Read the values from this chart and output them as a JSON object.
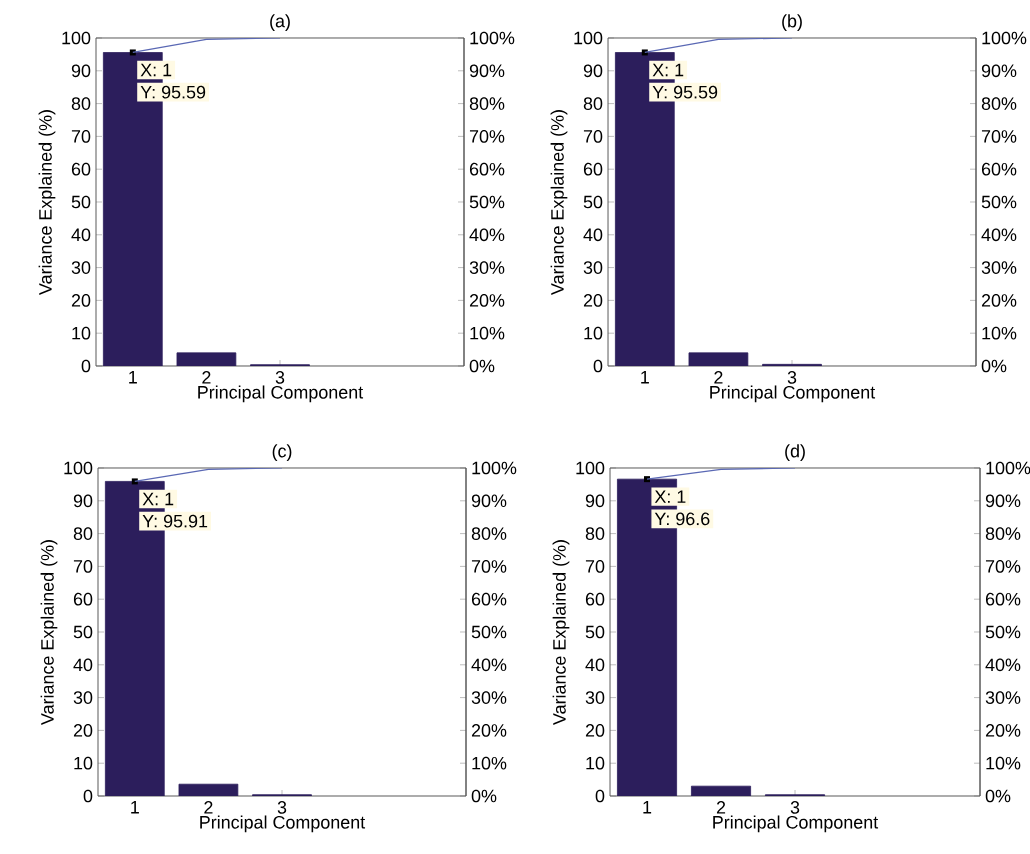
{
  "chart_data": [
    {
      "type": "bar",
      "title": "(a)",
      "xlabel": "Principal Component",
      "ylabel": "Variance Explained (%)",
      "x": [
        1,
        2,
        3
      ],
      "xlim": [
        0.5,
        5.5
      ],
      "xticks": [
        1,
        2,
        3
      ],
      "ylim": [
        0,
        100
      ],
      "yticks": [
        0,
        10,
        20,
        30,
        40,
        50,
        60,
        70,
        80,
        90,
        100
      ],
      "y2lim": [
        0,
        100
      ],
      "y2ticks": [
        {
          "value": 0,
          "label": "0%"
        },
        {
          "value": 10,
          "label": "10%"
        },
        {
          "value": 20,
          "label": "20%"
        },
        {
          "value": 30,
          "label": "30%"
        },
        {
          "value": 40,
          "label": "40%"
        },
        {
          "value": 50,
          "label": "50%"
        },
        {
          "value": 60,
          "label": "60%"
        },
        {
          "value": 70,
          "label": "70%"
        },
        {
          "value": 80,
          "label": "80%"
        },
        {
          "value": 90,
          "label": "90%"
        },
        {
          "value": 100,
          "label": "100%"
        }
      ],
      "annotations": [
        "X: 1",
        "Y: 95.59"
      ],
      "series": [
        {
          "type": "bar",
          "color": "#2c1e5c",
          "values": [
            95.59,
            4.0,
            0.4
          ]
        },
        {
          "type": "line",
          "axis": "y2",
          "color": "#5a68b4",
          "values": [
            95.59,
            99.6,
            100
          ]
        }
      ]
    },
    {
      "type": "bar",
      "title": "(b)",
      "xlabel": "Principal Component",
      "ylabel": "Variance Explained (%)",
      "x": [
        1,
        2,
        3
      ],
      "xlim": [
        0.5,
        5.5
      ],
      "xticks": [
        1,
        2,
        3
      ],
      "ylim": [
        0,
        100
      ],
      "yticks": [
        0,
        10,
        20,
        30,
        40,
        50,
        60,
        70,
        80,
        90,
        100
      ],
      "y2lim": [
        0,
        100
      ],
      "y2ticks": [
        {
          "value": 0,
          "label": "0%"
        },
        {
          "value": 10,
          "label": "10%"
        },
        {
          "value": 20,
          "label": "20%"
        },
        {
          "value": 30,
          "label": "30%"
        },
        {
          "value": 40,
          "label": "40%"
        },
        {
          "value": 50,
          "label": "50%"
        },
        {
          "value": 60,
          "label": "60%"
        },
        {
          "value": 70,
          "label": "70%"
        },
        {
          "value": 80,
          "label": "80%"
        },
        {
          "value": 90,
          "label": "90%"
        },
        {
          "value": 100,
          "label": "100%"
        }
      ],
      "annotations": [
        "X: 1",
        "Y: 95.59"
      ],
      "series": [
        {
          "type": "bar",
          "color": "#2c1e5c",
          "values": [
            95.59,
            4.0,
            0.5
          ]
        },
        {
          "type": "line",
          "axis": "y2",
          "color": "#5a68b4",
          "values": [
            95.59,
            99.6,
            100
          ]
        }
      ]
    },
    {
      "type": "bar",
      "title": "(c)",
      "xlabel": "Principal Component",
      "ylabel": "Variance Explained (%)",
      "x": [
        1,
        2,
        3
      ],
      "xlim": [
        0.5,
        5.5
      ],
      "xticks": [
        1,
        2,
        3
      ],
      "ylim": [
        0,
        100
      ],
      "yticks": [
        0,
        10,
        20,
        30,
        40,
        50,
        60,
        70,
        80,
        90,
        100
      ],
      "y2lim": [
        0,
        100
      ],
      "y2ticks": [
        {
          "value": 0,
          "label": "0%"
        },
        {
          "value": 10,
          "label": "10%"
        },
        {
          "value": 20,
          "label": "20%"
        },
        {
          "value": 30,
          "label": "30%"
        },
        {
          "value": 40,
          "label": "40%"
        },
        {
          "value": 50,
          "label": "50%"
        },
        {
          "value": 60,
          "label": "60%"
        },
        {
          "value": 70,
          "label": "70%"
        },
        {
          "value": 80,
          "label": "80%"
        },
        {
          "value": 90,
          "label": "90%"
        },
        {
          "value": 100,
          "label": "100%"
        }
      ],
      "annotations": [
        "X: 1",
        "Y: 95.91"
      ],
      "series": [
        {
          "type": "bar",
          "color": "#2c1e5c",
          "values": [
            95.91,
            3.6,
            0.4
          ]
        },
        {
          "type": "line",
          "axis": "y2",
          "color": "#5a68b4",
          "values": [
            95.91,
            99.6,
            100
          ]
        }
      ]
    },
    {
      "type": "bar",
      "title": "(d)",
      "xlabel": "Principal Component",
      "ylabel": "Variance Explained (%)",
      "x": [
        1,
        2,
        3
      ],
      "xlim": [
        0.5,
        5.5
      ],
      "xticks": [
        1,
        2,
        3
      ],
      "ylim": [
        0,
        100
      ],
      "yticks": [
        0,
        10,
        20,
        30,
        40,
        50,
        60,
        70,
        80,
        90,
        100
      ],
      "y2lim": [
        0,
        100
      ],
      "y2ticks": [
        {
          "value": 0,
          "label": "0%"
        },
        {
          "value": 10,
          "label": "10%"
        },
        {
          "value": 20,
          "label": "20%"
        },
        {
          "value": 30,
          "label": "30%"
        },
        {
          "value": 40,
          "label": "40%"
        },
        {
          "value": 50,
          "label": "50%"
        },
        {
          "value": 60,
          "label": "60%"
        },
        {
          "value": 70,
          "label": "70%"
        },
        {
          "value": 80,
          "label": "80%"
        },
        {
          "value": 90,
          "label": "90%"
        },
        {
          "value": 100,
          "label": "100%"
        }
      ],
      "annotations": [
        "X: 1",
        "Y: 96.6"
      ],
      "series": [
        {
          "type": "bar",
          "color": "#2c1e5c",
          "values": [
            96.6,
            3.0,
            0.4
          ]
        },
        {
          "type": "line",
          "axis": "y2",
          "color": "#5a68b4",
          "values": [
            96.6,
            99.6,
            100
          ]
        }
      ]
    }
  ]
}
